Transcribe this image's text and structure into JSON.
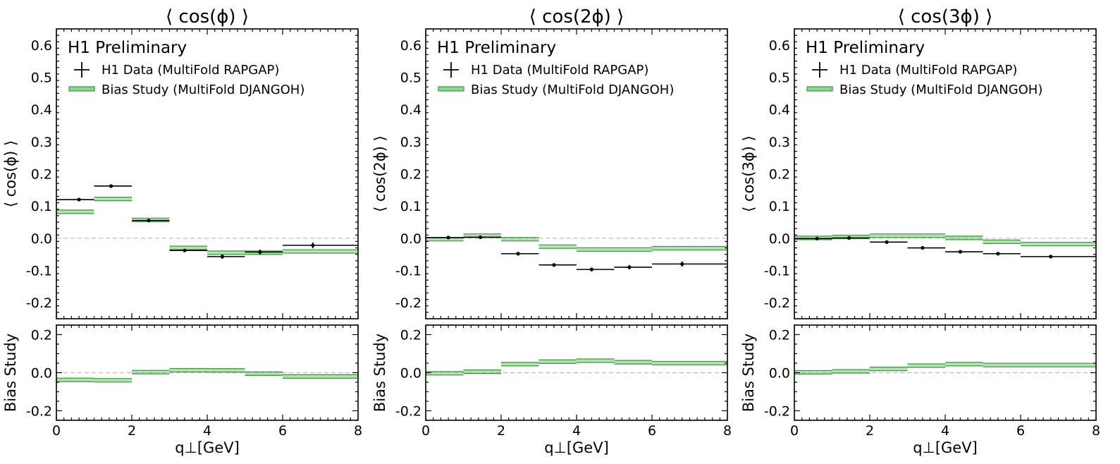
{
  "colors": {
    "data": "#000000",
    "bias": "#3a9a3a",
    "bias_band": "#7bc47b",
    "zero_line": "#bbbbbb"
  },
  "chart_data": [
    {
      "type": "line",
      "title": "⟨ cos(ϕ) ⟩",
      "experiment_label": "H1 Preliminary",
      "ylabel": "⟨ cos(ϕ) ⟩",
      "ratio_ylabel": "Bias Study",
      "xlabel": "q⊥[GeV]",
      "xlim": [
        0,
        8
      ],
      "ylim": [
        -0.25,
        0.65
      ],
      "ratio_ylim": [
        -0.25,
        0.25
      ],
      "yticks": [
        "-0.2",
        "-0.1",
        "0.0",
        "0.1",
        "0.2",
        "0.3",
        "0.4",
        "0.5",
        "0.6"
      ],
      "ratio_yticks": [
        "-0.2",
        "0.0",
        "0.2"
      ],
      "xticks": [
        "0",
        "2",
        "4",
        "6",
        "8"
      ],
      "legend": {
        "position": "top-left",
        "data_label": "H1 Data (MultiFold RAPGAP)",
        "bias_label": "Bias Study (MultiFold DJANGOH)"
      },
      "bins": [
        0,
        1,
        2,
        3,
        4,
        5,
        6,
        8
      ],
      "data_x": [
        0.6,
        1.45,
        2.45,
        3.4,
        4.4,
        5.4,
        6.8
      ],
      "data_y": [
        0.12,
        0.162,
        0.055,
        -0.038,
        -0.057,
        -0.043,
        -0.022
      ],
      "data_err": [
        0.003,
        0.003,
        0.003,
        0.005,
        0.007,
        0.008,
        0.009
      ],
      "bias_y": [
        0.082,
        0.122,
        0.057,
        -0.03,
        -0.045,
        -0.045,
        -0.041
      ],
      "ratio_y": [
        -0.038,
        -0.04,
        0.003,
        0.013,
        0.012,
        -0.005,
        -0.02
      ]
    },
    {
      "type": "line",
      "title": "⟨ cos(2ϕ) ⟩",
      "experiment_label": "H1 Preliminary",
      "ylabel": "⟨ cos(2ϕ) ⟩",
      "ratio_ylabel": "Bias Study",
      "xlabel": "q⊥[GeV]",
      "xlim": [
        0,
        8
      ],
      "ylim": [
        -0.25,
        0.65
      ],
      "ratio_ylim": [
        -0.25,
        0.25
      ],
      "yticks": [
        "-0.2",
        "-0.1",
        "0.0",
        "0.1",
        "0.2",
        "0.3",
        "0.4",
        "0.5",
        "0.6"
      ],
      "ratio_yticks": [
        "-0.2",
        "0.0",
        "0.2"
      ],
      "xticks": [
        "0",
        "2",
        "4",
        "6",
        "8"
      ],
      "legend": {
        "position": "top-left",
        "data_label": "H1 Data (MultiFold RAPGAP)",
        "bias_label": "Bias Study (MultiFold DJANGOH)"
      },
      "bins": [
        0,
        1,
        2,
        3,
        4,
        5,
        6,
        8
      ],
      "data_x": [
        0.6,
        1.45,
        2.45,
        3.4,
        4.4,
        5.4,
        6.8
      ],
      "data_y": [
        0.002,
        0.003,
        -0.048,
        -0.083,
        -0.097,
        -0.09,
        -0.08
      ],
      "data_err": [
        0.003,
        0.003,
        0.003,
        0.004,
        0.006,
        0.007,
        0.008
      ],
      "bias_y": [
        -0.003,
        0.008,
        -0.003,
        -0.026,
        -0.035,
        -0.035,
        -0.031
      ],
      "ratio_y": [
        -0.003,
        0.005,
        0.045,
        0.058,
        0.063,
        0.055,
        0.05
      ]
    },
    {
      "type": "line",
      "title": "⟨ cos(3ϕ) ⟩",
      "experiment_label": "H1 Preliminary",
      "ylabel": "⟨ cos(3ϕ) ⟩",
      "ratio_ylabel": "Bias Study",
      "xlabel": "q⊥[GeV]",
      "xlim": [
        0,
        8
      ],
      "ylim": [
        -0.25,
        0.65
      ],
      "ratio_ylim": [
        -0.25,
        0.25
      ],
      "yticks": [
        "-0.2",
        "-0.1",
        "0.0",
        "0.1",
        "0.2",
        "0.3",
        "0.4",
        "0.5",
        "0.6"
      ],
      "ratio_yticks": [
        "-0.2",
        "0.0",
        "0.2"
      ],
      "xticks": [
        "0",
        "2",
        "4",
        "6",
        "8"
      ],
      "legend": {
        "position": "top-left",
        "data_label": "H1 Data (MultiFold RAPGAP)",
        "bias_label": "Bias Study (MultiFold DJANGOH)"
      },
      "bins": [
        0,
        1,
        2,
        3,
        4,
        5,
        6,
        8
      ],
      "data_x": [
        0.6,
        1.45,
        2.45,
        3.4,
        4.4,
        5.4,
        6.8
      ],
      "data_y": [
        -0.001,
        0.001,
        -0.012,
        -0.03,
        -0.042,
        -0.048,
        -0.057
      ],
      "data_err": [
        0.002,
        0.002,
        0.002,
        0.003,
        0.003,
        0.003,
        0.003
      ],
      "bias_y": [
        0.001,
        0.004,
        0.008,
        0.008,
        0.001,
        -0.011,
        -0.018
      ],
      "ratio_y": [
        0.002,
        0.007,
        0.02,
        0.037,
        0.045,
        0.04,
        0.04
      ]
    }
  ]
}
